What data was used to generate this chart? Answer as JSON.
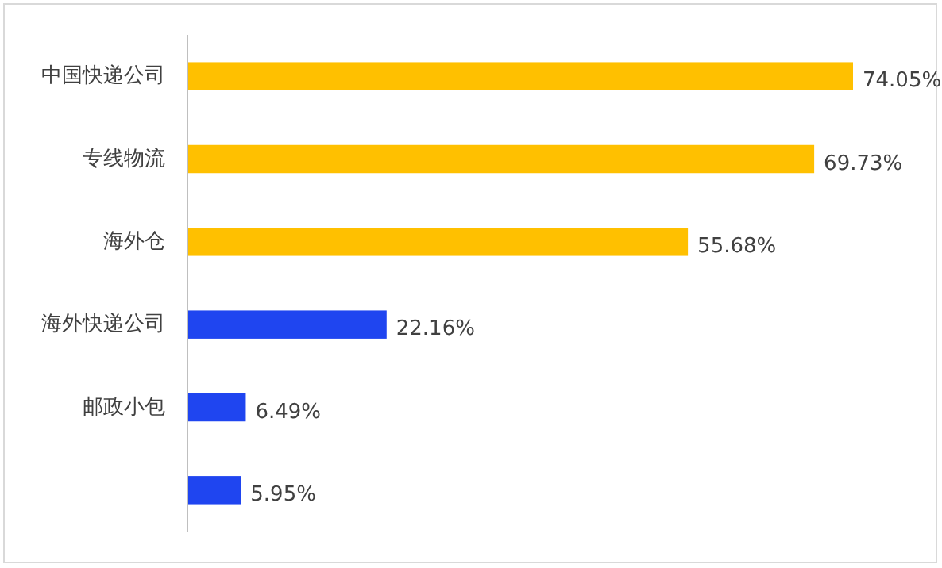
{
  "chart_data": {
    "type": "bar",
    "orientation": "horizontal",
    "categories": [
      "中国快递公司",
      "专线物流",
      "海外仓",
      "海外快递公司",
      "邮政小包",
      null
    ],
    "values": [
      74.05,
      69.73,
      55.68,
      22.16,
      6.49,
      5.95
    ],
    "value_labels": [
      "74.05%",
      "69.73%",
      "55.68%",
      "22.16%",
      "6.49%",
      "5.95%"
    ],
    "colors": [
      "#ffc000",
      "#ffc000",
      "#ffc000",
      "#1f45f0",
      "#1f45f0",
      "#1f45f0"
    ]
  }
}
